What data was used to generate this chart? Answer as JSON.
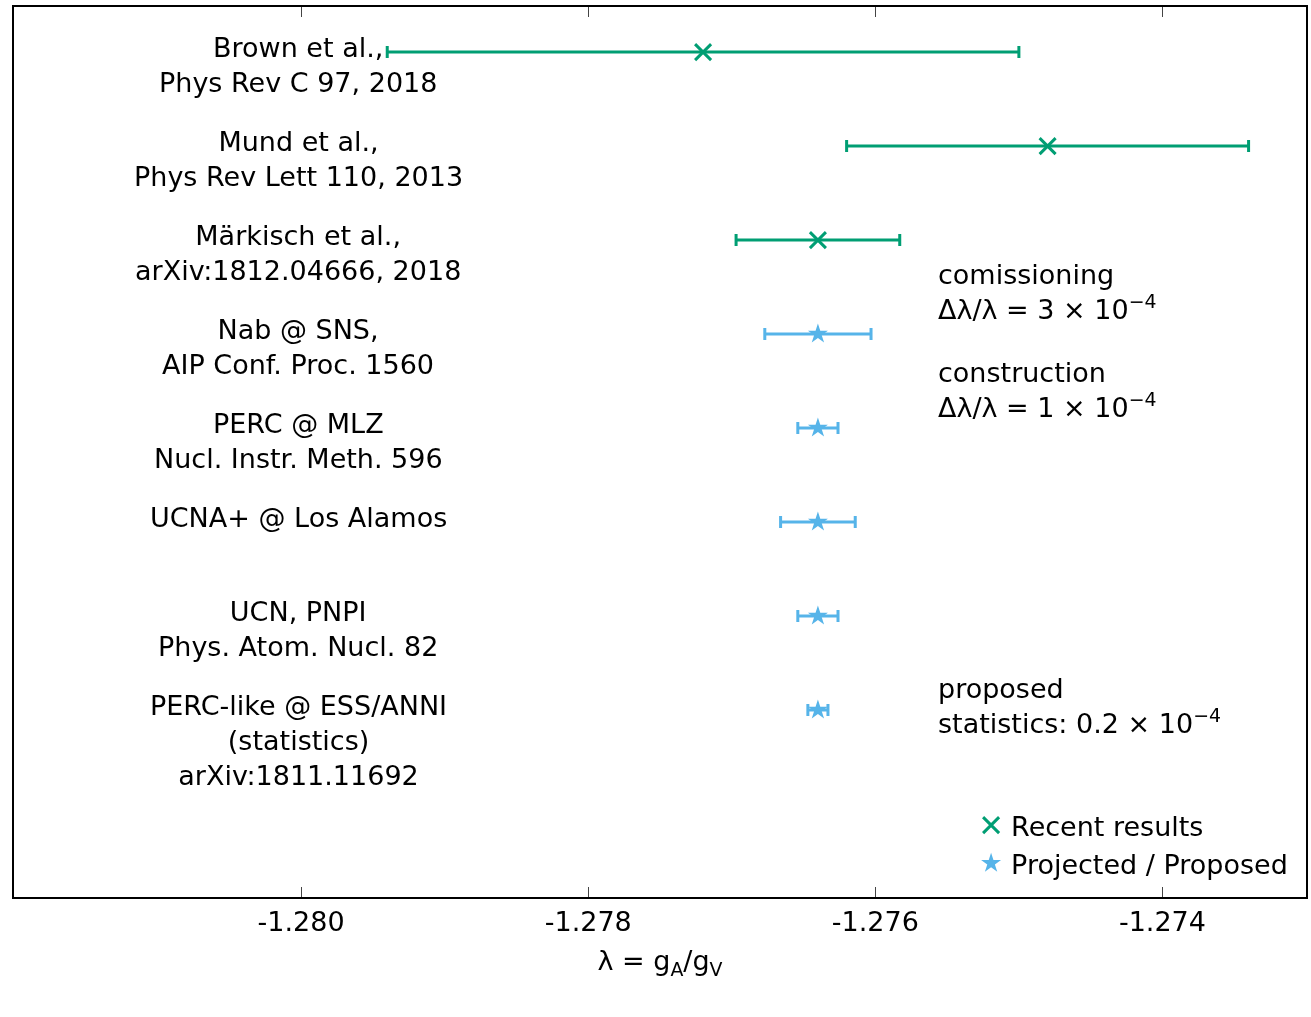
{
  "chart_data": {
    "type": "scatter",
    "orientation": "horizontal",
    "categories": [
      "Brown et al.,\nPhys Rev C 97, 2018",
      "Mund et al.,\nPhys Rev Lett 110, 2013",
      "Märkisch et al.,\narXiv:1812.04666, 2018",
      "Nab @ SNS,\nAIP Conf. Proc. 1560",
      "PERC @ MLZ\nNucl. Instr. Meth. 596",
      "UCNA+ @ Los Alamos",
      "UCN, PNPI\nPhys. Atom. Nucl. 82",
      "PERC-like @ ESS/ANNI\n(statistics)\narXiv:1811.11692"
    ],
    "series": [
      {
        "name": "Recent results",
        "color": "#009e73",
        "marker": "cross",
        "values": [
          -1.2772,
          -1.2748,
          -1.2764,
          null,
          null,
          null,
          null,
          null
        ],
        "errors": [
          0.0022,
          0.0014,
          0.00057,
          null,
          null,
          null,
          null,
          null
        ]
      },
      {
        "name": "Projected / Proposed",
        "color": "#56b4e9",
        "marker": "star",
        "values": [
          null,
          null,
          null,
          -1.2764,
          -1.2764,
          -1.2764,
          -1.2764,
          -1.2764
        ],
        "errors": [
          null,
          null,
          null,
          0.00037,
          0.00014,
          0.00026,
          0.00014,
          7e-05
        ]
      }
    ],
    "xlabel": "λ = g$_{A}$/g$_{V}$",
    "xlim": [
      -1.282,
      -1.273
    ],
    "xticks": [
      {
        "value": -1.28,
        "label": "-1.280"
      },
      {
        "value": -1.278,
        "label": "-1.278"
      },
      {
        "value": -1.276,
        "label": "-1.276"
      },
      {
        "value": -1.274,
        "label": "-1.274"
      }
    ],
    "annotations": [
      "comissioning\nΔλ/λ = 3 × 10$^{−4}$",
      "construction\nΔλ/λ = 1 × 10$^{−4}$",
      "proposed\nstatistics: 0.2 × 10$^{−4}$"
    ],
    "grid": false,
    "legend": "bottom right"
  }
}
